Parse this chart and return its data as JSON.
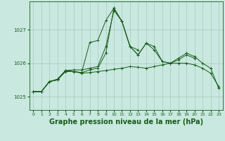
{
  "background_color": "#c8e8e0",
  "grid_color": "#a0c0b8",
  "line_color": "#1a5c1a",
  "xlabel": "Graphe pression niveau de la mer (hPa)",
  "xlabel_fontsize": 7,
  "xlim": [
    -0.5,
    23.5
  ],
  "ylim": [
    1024.6,
    1027.85
  ],
  "yticks": [
    1025,
    1026,
    1027
  ],
  "xticks": [
    0,
    1,
    2,
    3,
    4,
    5,
    6,
    7,
    8,
    9,
    10,
    11,
    12,
    13,
    14,
    15,
    16,
    17,
    18,
    19,
    20,
    21,
    22,
    23
  ],
  "series1_x": [
    0,
    1,
    2,
    3,
    4,
    5,
    6,
    7,
    8,
    9,
    10,
    11,
    12,
    13,
    14,
    15,
    16,
    17,
    18,
    19,
    20,
    21,
    22,
    23
  ],
  "series1_y": [
    1025.15,
    1025.15,
    1025.45,
    1025.5,
    1025.75,
    1025.75,
    1025.7,
    1025.72,
    1025.75,
    1025.78,
    1025.82,
    1025.85,
    1025.9,
    1025.88,
    1025.85,
    1025.9,
    1025.95,
    1026.0,
    1026.0,
    1026.0,
    1025.95,
    1025.85,
    1025.7,
    1025.3
  ],
  "series2_x": [
    0,
    1,
    2,
    3,
    4,
    5,
    6,
    7,
    8,
    9,
    10,
    11,
    12,
    13
  ],
  "series2_y": [
    1025.15,
    1025.15,
    1025.45,
    1025.5,
    1025.78,
    1025.8,
    1025.8,
    1025.85,
    1025.9,
    1026.5,
    1027.58,
    1027.25,
    1026.5,
    1026.4
  ],
  "series3_x": [
    0,
    1,
    2,
    3,
    4,
    5,
    6,
    7,
    8,
    9,
    10,
    11,
    12,
    13,
    14,
    15,
    16,
    17,
    18,
    19,
    20
  ],
  "series3_y": [
    1025.15,
    1025.15,
    1025.45,
    1025.52,
    1025.78,
    1025.75,
    1025.72,
    1025.8,
    1025.85,
    1026.3,
    1027.65,
    1027.25,
    1026.5,
    1026.25,
    1026.6,
    1026.4,
    1026.05,
    1026.0,
    1026.1,
    1026.25,
    1026.15
  ],
  "series4_x": [
    0,
    1,
    2,
    3,
    4,
    5,
    6,
    7,
    8,
    9,
    10,
    11,
    12,
    13,
    14,
    15,
    16,
    17,
    18,
    19,
    20,
    21,
    22,
    23
  ],
  "series4_y": [
    1025.15,
    1025.15,
    1025.45,
    1025.52,
    1025.78,
    1025.75,
    1025.72,
    1026.62,
    1026.68,
    1027.28,
    1027.65,
    1027.25,
    1026.5,
    1026.25,
    1026.6,
    1026.5,
    1026.05,
    1026.0,
    1026.15,
    1026.3,
    1026.2,
    1026.0,
    1025.85,
    1025.25
  ]
}
